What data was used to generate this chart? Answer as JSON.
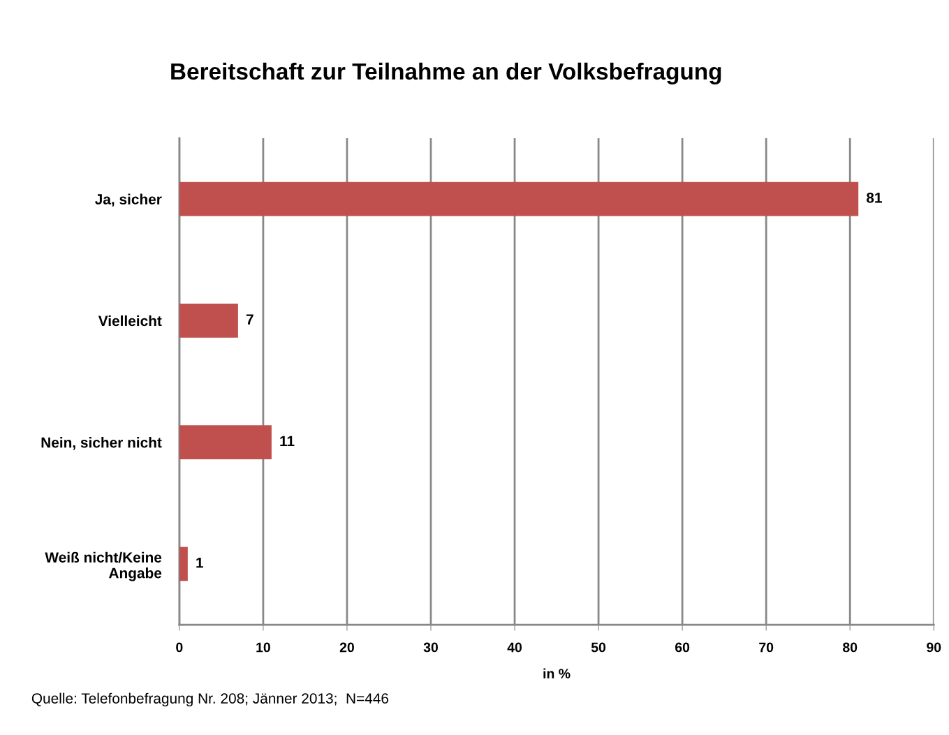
{
  "chart_data": {
    "type": "bar",
    "orientation": "horizontal",
    "title": "Bereitschaft zur Teilnahme an der Volksbefragung",
    "categories": [
      "Ja, sicher",
      "Vielleicht",
      "Nein, sicher nicht",
      "Weiß nicht/Keine Angabe"
    ],
    "values": [
      81,
      7,
      11,
      1
    ],
    "color": "#c0504d",
    "data_labels": true,
    "xlim": [
      0,
      90
    ],
    "xticks": [
      0,
      10,
      20,
      30,
      40,
      50,
      60,
      70,
      80,
      90
    ],
    "xlabel": "in %",
    "grid": "x",
    "legend": false,
    "annotations": [
      "Quelle: Telefonbefragung Nr. 208; Jänner 2013;  N=446"
    ]
  }
}
